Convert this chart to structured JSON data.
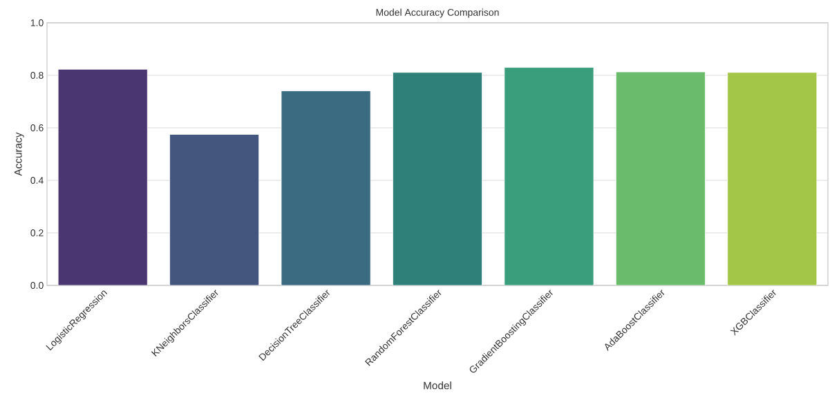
{
  "chart_data": {
    "type": "bar",
    "title": "Model Accuracy Comparison",
    "xlabel": "Model",
    "ylabel": "Accuracy",
    "categories": [
      "LogisticRegression",
      "KNeighborsClassifier",
      "DecisionTreeClassifier",
      "RandomForestClassifier",
      "GradientBoostingClassifier",
      "AdaBoostClassifier",
      "XGBClassifier"
    ],
    "values": [
      0.823,
      0.575,
      0.741,
      0.811,
      0.83,
      0.813,
      0.811
    ],
    "colors": [
      "#4a3670",
      "#44567e",
      "#3a6b80",
      "#2e8078",
      "#3a9d7b",
      "#6abc6c",
      "#a3c548"
    ],
    "ylim": [
      0,
      1
    ],
    "yticks": [
      {
        "value": 0,
        "label": "0.0"
      },
      0.2,
      0.4,
      0.6,
      0.8,
      {
        "value": 1,
        "label": "1.0"
      }
    ],
    "grid": "y"
  }
}
